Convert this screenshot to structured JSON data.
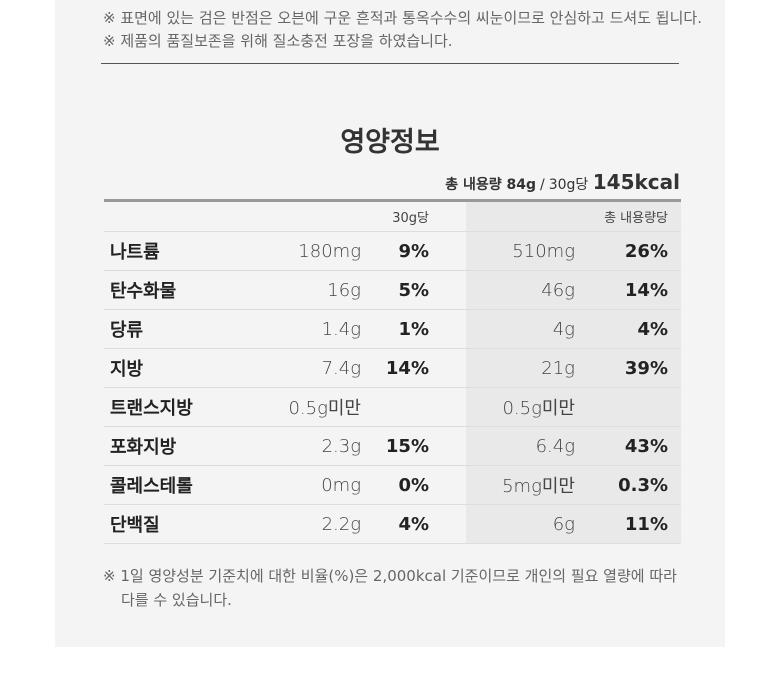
{
  "notes": [
    "※ 표면에 있는 검은 반점은 오븐에 구운 흔적과 통옥수수의 씨눈이므로 안심하고 드셔도 됩니다.",
    "※ 제품의 품질보존을 위해 질소충전 포장을 하였습니다."
  ],
  "title": "영양정보",
  "summary": {
    "total": "총 내용량 84g",
    "separator": "/",
    "per": "30g당",
    "kcal": "145kcal"
  },
  "table": {
    "header": {
      "per": "30g당",
      "total": "총 내용량당"
    },
    "rows": [
      {
        "name": "나트륨",
        "per": "180mg",
        "per_pct": "9%",
        "total": "510mg",
        "total_pct": "26%"
      },
      {
        "name": "탄수화물",
        "per": "16g",
        "per_pct": "5%",
        "total": "46g",
        "total_pct": "14%"
      },
      {
        "name": "당류",
        "per": "1.4g",
        "per_pct": "1%",
        "total": "4g",
        "total_pct": "4%"
      },
      {
        "name": "지방",
        "per": "7.4g",
        "per_pct": "14%",
        "total": "21g",
        "total_pct": "39%"
      },
      {
        "name": "트랜스지방",
        "per": "0.5g미만",
        "total": "0.5g미만"
      },
      {
        "name": "포화지방",
        "per": "2.3g",
        "per_pct": "15%",
        "total": "6.4g",
        "total_pct": "43%"
      },
      {
        "name": "콜레스테롤",
        "per": "0mg",
        "per_pct": "0%",
        "total": "5mg미만",
        "total_pct": "0.3%"
      },
      {
        "name": "단백질",
        "per": "2.2g",
        "per_pct": "4%",
        "total": "6g",
        "total_pct": "11%"
      }
    ]
  },
  "footnote": "※ 1일 영양성분 기준치에 대한 비율(%)은 2,000kcal 기준이므로 개인의 필요 열량에 따라 다를 수 있습니다."
}
